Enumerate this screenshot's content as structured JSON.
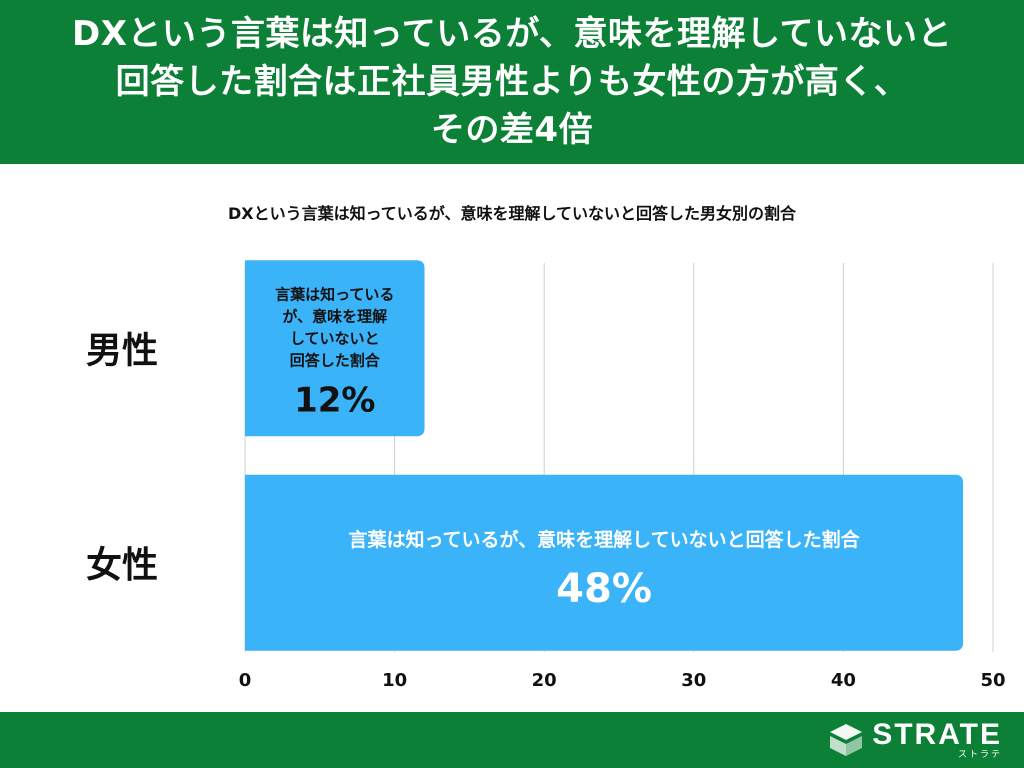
{
  "header": {
    "title_lines": [
      "DXという言葉は知っているが、意味を理解していないと",
      "回答した割合は正社員男性よりも女性の方が高く、",
      "その差4倍"
    ]
  },
  "chart_data": {
    "type": "bar",
    "orientation": "horizontal",
    "title": "DXという言葉は知っているが、意味を理解していないと回答した男女別の割合",
    "categories": [
      "男性",
      "女性"
    ],
    "series": [
      {
        "values": [
          12,
          48
        ],
        "color": "#3bb3f8"
      }
    ],
    "bar_labels": [
      [
        "言葉は知っている",
        "が、意味を理解",
        "していないと",
        "回答した割合"
      ],
      [
        "言葉は知っているが、意味を理解していないと回答した割合"
      ]
    ],
    "value_labels": [
      "12%",
      "48%"
    ],
    "xlim": [
      0,
      50
    ],
    "x_ticks": [
      0,
      10,
      20,
      30,
      40,
      50
    ],
    "xlabel": "",
    "ylabel": "",
    "grid": "vertical",
    "legend": "none"
  },
  "footer": {
    "logo_word": "STRATE",
    "logo_kana": "ストラテ"
  },
  "colors": {
    "header_bg": "#0b8036",
    "bar": "#3bb3f8",
    "grid": "#d0d0d0"
  }
}
